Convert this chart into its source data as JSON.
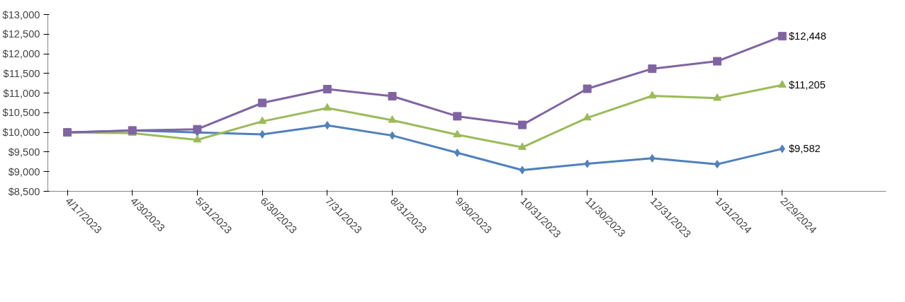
{
  "chart_data": {
    "type": "line",
    "categories": [
      "4/17/2023",
      "4/302023",
      "5/31/2023",
      "6/30/2023",
      "7/31/2023",
      "8/31/2023",
      "9/30/2023",
      "10/31/2023",
      "11/30/2023",
      "12/31/2023",
      "1/31/2024",
      "2/29/2024"
    ],
    "series": [
      {
        "color": "#4f81bd",
        "marker": "diamond",
        "values": [
          10000,
          10050,
          10000,
          9950,
          10180,
          9920,
          9480,
          9040,
          9200,
          9340,
          9190,
          9582
        ],
        "value_labels": [
          null,
          null,
          null,
          null,
          null,
          null,
          null,
          null,
          null,
          null,
          null,
          "$9,582"
        ]
      },
      {
        "color": "#9bbb59",
        "marker": "triangle",
        "values": [
          10000,
          9980,
          9810,
          10280,
          10620,
          10310,
          9940,
          9620,
          10370,
          10930,
          10870,
          11205
        ],
        "value_labels": [
          null,
          null,
          null,
          null,
          null,
          null,
          null,
          null,
          null,
          null,
          null,
          "$11,205"
        ]
      },
      {
        "color": "#8064a2",
        "marker": "square",
        "values": [
          10000,
          10050,
          10080,
          10750,
          11100,
          10920,
          10410,
          10190,
          11110,
          11620,
          11810,
          12448
        ],
        "value_labels": [
          null,
          null,
          null,
          null,
          null,
          null,
          null,
          null,
          null,
          null,
          null,
          "$12,448"
        ]
      }
    ],
    "ylim": [
      8500,
      13000
    ],
    "yticks": [
      {
        "value": 8500,
        "label": "$8,500"
      },
      {
        "value": 9000,
        "label": "$9,000"
      },
      {
        "value": 9500,
        "label": "$9,500"
      },
      {
        "value": 10000,
        "label": "$10,000"
      },
      {
        "value": 10500,
        "label": "$10,500"
      },
      {
        "value": 11000,
        "label": "$11,000"
      },
      {
        "value": 11500,
        "label": "$11,500"
      },
      {
        "value": 12000,
        "label": "$12,000"
      },
      {
        "value": 12500,
        "label": "$12,500"
      },
      {
        "value": 13000,
        "label": "$13,000"
      }
    ],
    "grid": false
  }
}
